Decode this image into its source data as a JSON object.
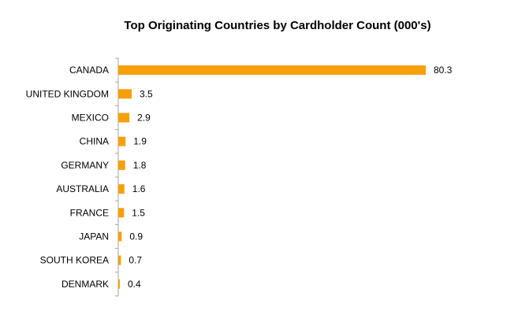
{
  "chart_data": {
    "type": "bar",
    "orientation": "horizontal",
    "title": "Top Originating Countries by Cardholder Count (000's)",
    "categories": [
      "CANADA",
      "UNITED KINGDOM",
      "MEXICO",
      "CHINA",
      "GERMANY",
      "AUSTRALIA",
      "FRANCE",
      "JAPAN",
      "SOUTH KOREA",
      "DENMARK"
    ],
    "values": [
      80.3,
      3.5,
      2.9,
      1.9,
      1.8,
      1.6,
      1.5,
      0.9,
      0.7,
      0.4
    ],
    "data_labels": [
      "80.3",
      "3.5",
      "2.9",
      "1.9",
      "1.8",
      "1.6",
      "1.5",
      "0.9",
      "0.7",
      "0.4"
    ],
    "xlabel": "",
    "ylabel": "",
    "xlim": [
      0,
      80.3
    ],
    "grid": false,
    "legend": "none",
    "bar_color": "#F5A00A",
    "axis_color": "#A6A6A6"
  }
}
